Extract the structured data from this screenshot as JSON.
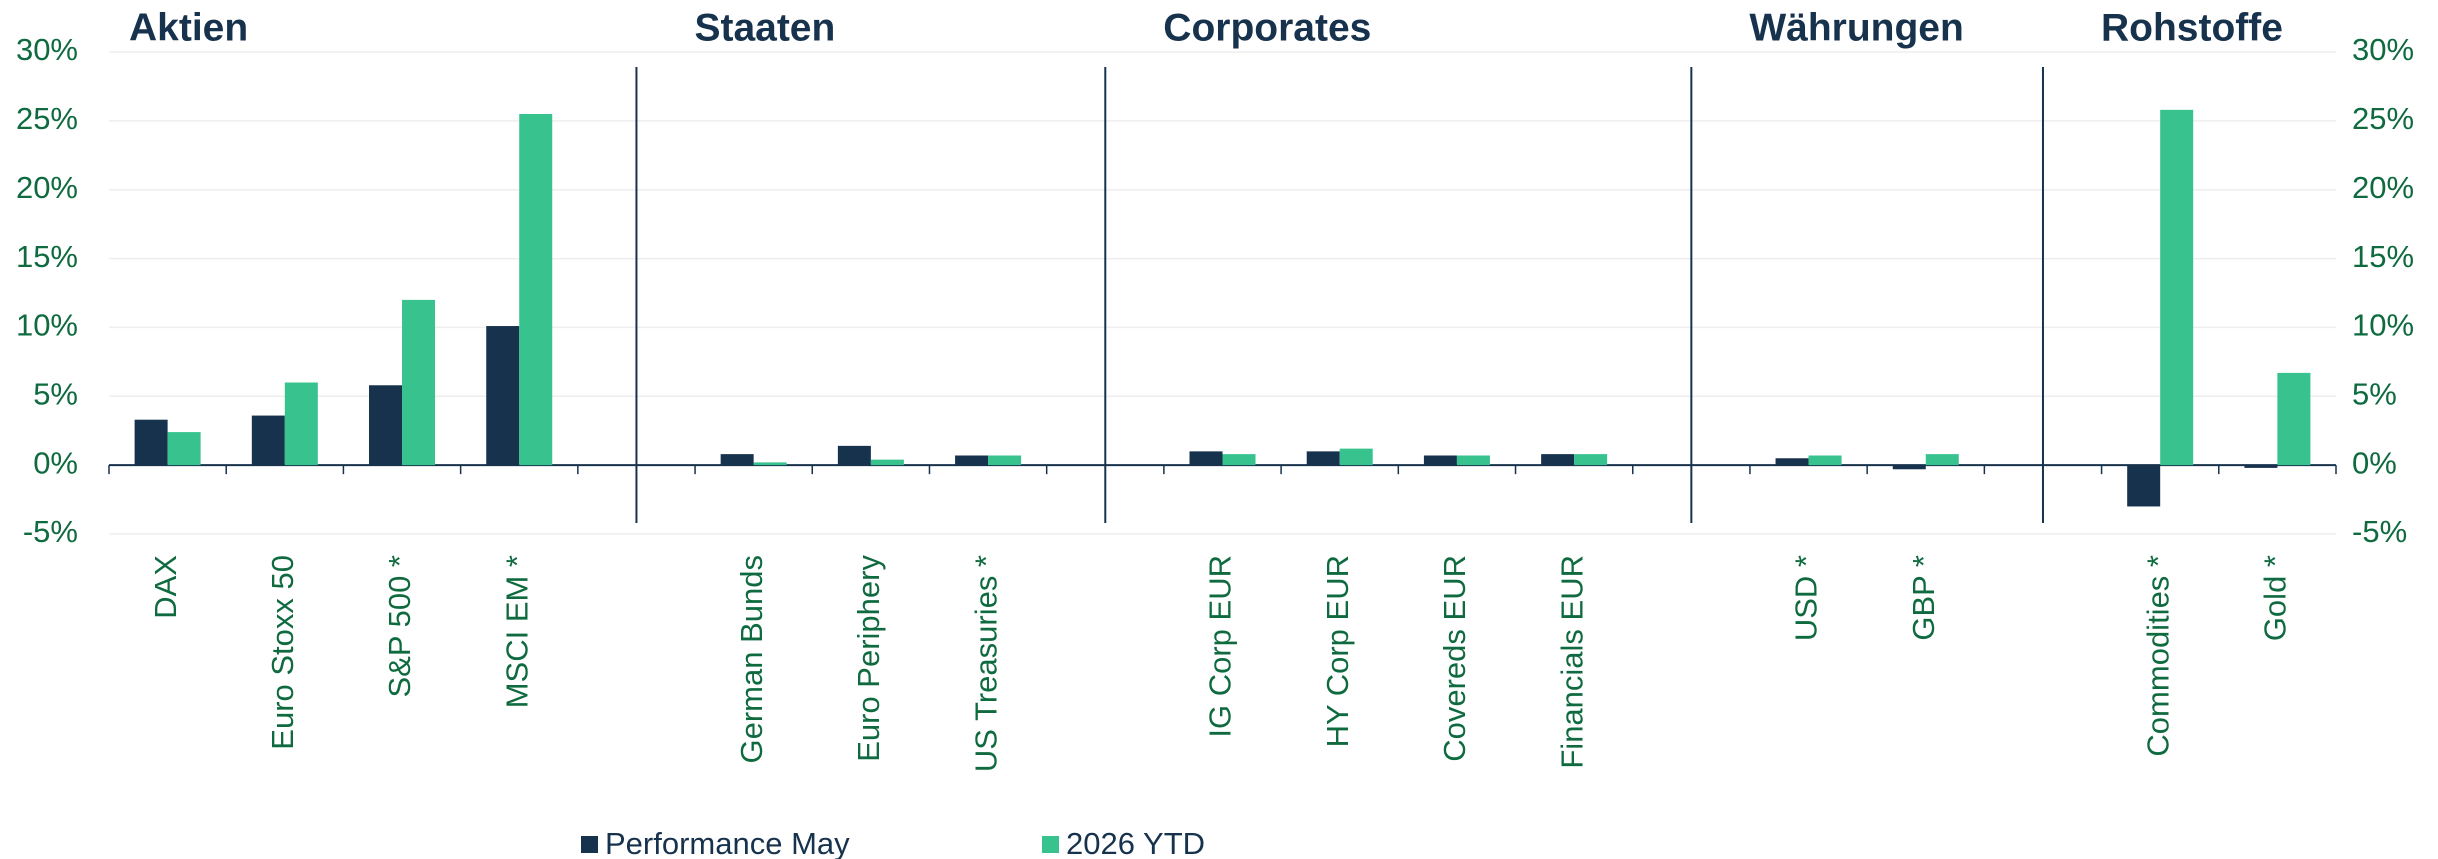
{
  "chart_data": {
    "type": "bar",
    "annotations": [
      "Aktien",
      "Staaten",
      "Corporates",
      "Währungen",
      "Rohstoffe"
    ],
    "categories": [
      "DAX",
      "Euro Stoxx 50",
      "S&P 500 *",
      "MSCI EM *",
      null,
      "German Bunds",
      "Euro Periphery",
      "US Treasuries *",
      null,
      "IG Corp EUR",
      "HY Corp EUR",
      "Covereds EUR",
      "Financials EUR",
      null,
      "USD *",
      "GBP *",
      null,
      "Commodities *",
      "Gold *"
    ],
    "series": [
      {
        "name": "Performance May",
        "color": "#17324d",
        "values": [
          3.3,
          3.6,
          5.8,
          10.1,
          null,
          0.8,
          1.4,
          0.7,
          null,
          1.0,
          1.0,
          0.7,
          0.8,
          null,
          0.5,
          -0.3,
          null,
          -3.0,
          -0.2
        ]
      },
      {
        "name": "2026 YTD",
        "color": "#37c28e",
        "values": [
          2.4,
          6.0,
          12.0,
          25.5,
          null,
          0.2,
          0.4,
          0.7,
          null,
          0.8,
          1.2,
          0.7,
          0.8,
          null,
          0.7,
          0.8,
          null,
          25.8,
          6.7
        ]
      }
    ],
    "ylim": [
      -5,
      30
    ],
    "yticks": [
      {
        "value": -5,
        "label": "-5%"
      },
      {
        "value": 0,
        "label": "0%"
      },
      {
        "value": 5,
        "label": "5%"
      },
      {
        "value": 10,
        "label": "10%"
      },
      {
        "value": 15,
        "label": "15%"
      },
      {
        "value": 20,
        "label": "20%"
      },
      {
        "value": 25,
        "label": "25%"
      },
      {
        "value": 30,
        "label": "30%"
      }
    ],
    "y2lim": [
      -5,
      30
    ],
    "y2ticks": [
      {
        "value": -5,
        "label": "-5%"
      },
      {
        "value": 0,
        "label": "0%"
      },
      {
        "value": 5,
        "label": "5%"
      },
      {
        "value": 10,
        "label": "10%"
      },
      {
        "value": 15,
        "label": "15%"
      },
      {
        "value": 20,
        "label": "20%"
      },
      {
        "value": 25,
        "label": "25%"
      },
      {
        "value": 30,
        "label": "30%"
      }
    ],
    "grid": true,
    "legend": "bottom"
  }
}
